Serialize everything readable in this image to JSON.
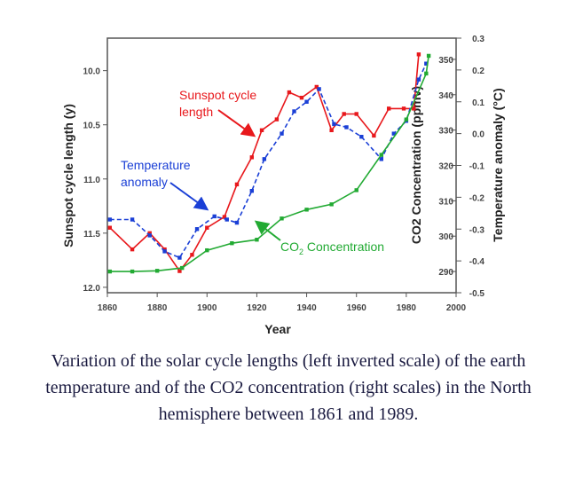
{
  "caption": "Variation of the solar cycle lengths (left inverted scale) of the earth temperature  and of the CO2 concentration (right scales) in the North hemisphere between 1861 and 1989.",
  "colors": {
    "sunspot": "#e8181c",
    "temperature": "#1a3fd6",
    "co2": "#22aa33",
    "axis_text": "#444444"
  },
  "chart_data": {
    "type": "line",
    "xlabel": "Year",
    "ylabel_left": "Sunspot cycle length (y)",
    "ylabel_right_co2": "CO2 Concentration (ppmv)",
    "ylabel_right_temp": "Temperature anomaly (°C)",
    "x_ticks": [
      "1860",
      "1880",
      "1900",
      "1920",
      "1940",
      "1960",
      "1980",
      "2000"
    ],
    "xlim": [
      1860,
      2000
    ],
    "left_axis": {
      "ticks": [
        "10.0",
        "10.5",
        "11.0",
        "11.5",
        "12.0"
      ],
      "ylim": [
        9.7,
        12.05
      ],
      "inverted": true
    },
    "co2_axis": {
      "ticks": [
        "350",
        "340",
        "330",
        "320",
        "310",
        "300",
        "290"
      ],
      "ylim": [
        284,
        356
      ]
    },
    "temp_axis": {
      "ticks": [
        "0.3",
        "0.2",
        "0.1",
        "0.0",
        "-0.1",
        "-0.2",
        "-0.3",
        "-0.4",
        "-0.5"
      ],
      "ylim": [
        -0.5,
        0.3
      ]
    },
    "annotations": {
      "sunspot_line1": "Sunspot cycle",
      "sunspot_line2": "length",
      "temp_line1": "Temperature",
      "temp_line2": "anomaly",
      "co2_prefix": "CO",
      "co2_sub": "2",
      "co2_suffix": " Concentration"
    },
    "series": [
      {
        "name": "Sunspot cycle length",
        "axis": "left",
        "points": [
          [
            1861,
            11.45
          ],
          [
            1870,
            11.65
          ],
          [
            1877,
            11.5
          ],
          [
            1883,
            11.65
          ],
          [
            1889,
            11.85
          ],
          [
            1894,
            11.7
          ],
          [
            1900,
            11.45
          ],
          [
            1907,
            11.35
          ],
          [
            1912,
            11.05
          ],
          [
            1918,
            10.8
          ],
          [
            1922,
            10.55
          ],
          [
            1928,
            10.45
          ],
          [
            1933,
            10.2
          ],
          [
            1938,
            10.25
          ],
          [
            1944,
            10.15
          ],
          [
            1950,
            10.55
          ],
          [
            1955,
            10.4
          ],
          [
            1960,
            10.4
          ],
          [
            1967,
            10.6
          ],
          [
            1973,
            10.35
          ],
          [
            1979,
            10.35
          ],
          [
            1983,
            10.35
          ],
          [
            1985,
            9.85
          ]
        ]
      },
      {
        "name": "Temperature anomaly",
        "axis": "temp",
        "points": [
          [
            1861,
            -0.27
          ],
          [
            1870,
            -0.27
          ],
          [
            1877,
            -0.32
          ],
          [
            1883,
            -0.37
          ],
          [
            1889,
            -0.39
          ],
          [
            1896,
            -0.3
          ],
          [
            1903,
            -0.26
          ],
          [
            1908,
            -0.27
          ],
          [
            1912,
            -0.28
          ],
          [
            1918,
            -0.18
          ],
          [
            1923,
            -0.08
          ],
          [
            1930,
            0.0
          ],
          [
            1935,
            0.07
          ],
          [
            1940,
            0.1
          ],
          [
            1945,
            0.14
          ],
          [
            1951,
            0.03
          ],
          [
            1956,
            0.02
          ],
          [
            1962,
            -0.01
          ],
          [
            1970,
            -0.08
          ],
          [
            1975,
            0.0
          ],
          [
            1980,
            0.04
          ],
          [
            1985,
            0.17
          ],
          [
            1988,
            0.22
          ]
        ]
      },
      {
        "name": "CO2 Concentration",
        "axis": "co2",
        "points": [
          [
            1861,
            290.0
          ],
          [
            1870,
            290.0
          ],
          [
            1880,
            290.2
          ],
          [
            1890,
            291.0
          ],
          [
            1900,
            296.0
          ],
          [
            1910,
            298.0
          ],
          [
            1920,
            299.0
          ],
          [
            1930,
            305.0
          ],
          [
            1940,
            307.5
          ],
          [
            1950,
            309.0
          ],
          [
            1960,
            313.0
          ],
          [
            1970,
            323.0
          ],
          [
            1980,
            333.0
          ],
          [
            1988,
            346.0
          ],
          [
            1989,
            351.0
          ]
        ]
      }
    ]
  }
}
